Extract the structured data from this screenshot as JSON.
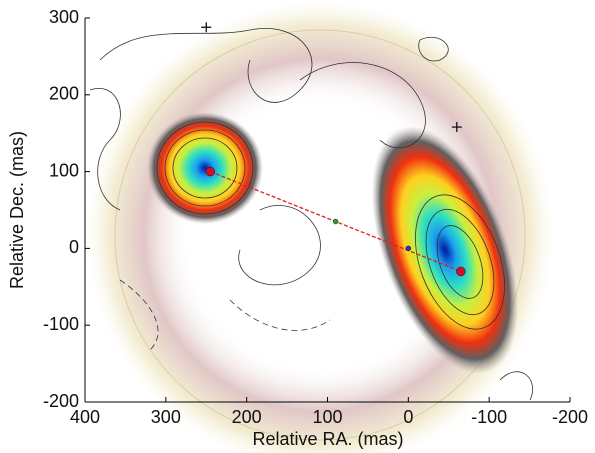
{
  "chart_data": {
    "type": "image",
    "xlabel": "Relative RA. (mas)",
    "ylabel": "Relative Dec. (mas)",
    "xlim": [
      400,
      -200
    ],
    "ylim": [
      -200,
      300
    ],
    "xticks": [
      400,
      300,
      200,
      100,
      0,
      -100,
      -200
    ],
    "yticks": [
      -200,
      -100,
      0,
      100,
      200,
      300
    ],
    "points": {
      "x": [
        245,
        -65,
        90,
        0
      ],
      "y": [
        100,
        -30,
        35,
        0
      ],
      "colors": [
        "#d0102a",
        "#d0102a",
        "#2ca02c",
        "#3030c0"
      ]
    },
    "crosses": {
      "x": [
        250,
        -60
      ],
      "y": [
        288,
        158
      ],
      "color": "#000000"
    },
    "link_color": "#e02020"
  }
}
